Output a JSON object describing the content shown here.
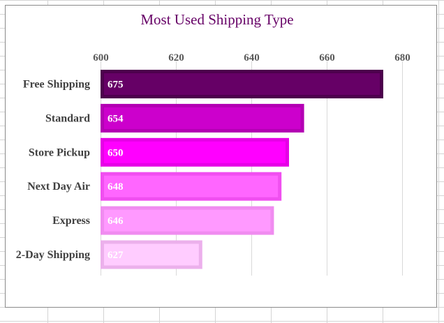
{
  "chart_data": {
    "type": "bar",
    "orientation": "horizontal",
    "title": "Most Used Shipping Type",
    "xlabel": "",
    "ylabel": "",
    "categories": [
      "Free Shipping",
      "Standard",
      "Store Pickup",
      "Next Day Air",
      "Express",
      "2-Day Shipping"
    ],
    "values": [
      675,
      654,
      650,
      648,
      646,
      627
    ],
    "xlim": [
      600,
      680
    ],
    "x_ticks": [
      "600",
      "620",
      "640",
      "660",
      "680"
    ],
    "value_axis_position": "top",
    "grid": true,
    "legend": "none",
    "data_labels": "inside-base",
    "colors": [
      "#660066",
      "#cc00cc",
      "#ff00ff",
      "#ff66ff",
      "#ff99ff",
      "#ffccff"
    ],
    "border_colors": [
      "#4d004d",
      "#b300b3",
      "#e600e6",
      "#f04ff0",
      "#f08cf0",
      "#ecb0ec"
    ]
  }
}
